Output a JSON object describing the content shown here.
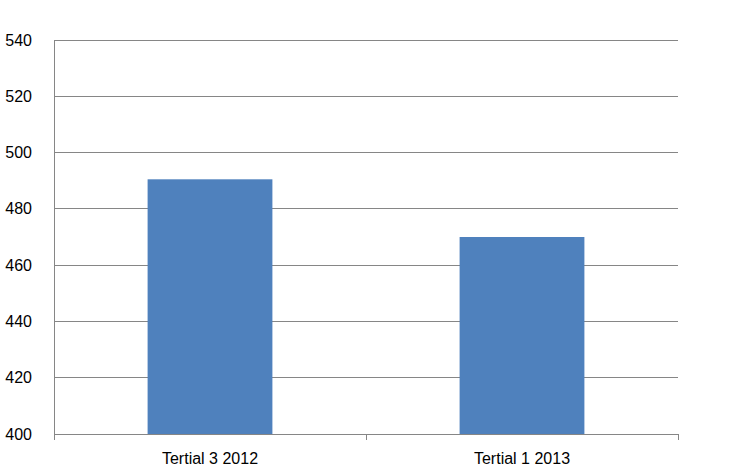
{
  "chart_data": {
    "type": "bar",
    "categories": [
      "Tertial 3 2012",
      "Tertial 1 2013"
    ],
    "values": [
      490.5,
      470
    ],
    "color": "#4f81bd",
    "ylim": [
      400,
      540
    ],
    "yticks": [
      400,
      420,
      440,
      460,
      480,
      500,
      520,
      540
    ],
    "grid": true
  }
}
